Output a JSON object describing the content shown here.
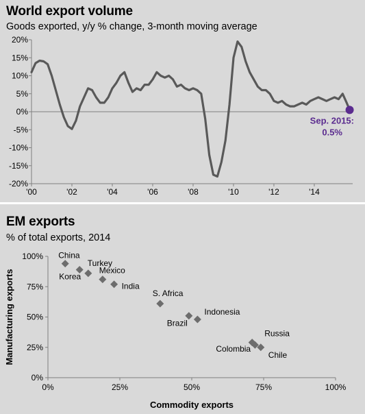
{
  "chart_data": [
    {
      "type": "line",
      "title": "World export volume",
      "subtitle": "Goods exported, y/y % change, 3-month moving average",
      "xlim": [
        2000,
        2015.9
      ],
      "ylim": [
        -20,
        20
      ],
      "x_ticks": [
        "'00",
        "'02",
        "'04",
        "'06",
        "'08",
        "'10",
        "'12",
        "'14"
      ],
      "y_ticks": [
        "20%",
        "15%",
        "10%",
        "5%",
        "0%",
        "-5%",
        "-10%",
        "-15%",
        "-20%"
      ],
      "line_color": "#595959",
      "point_color": "#5b2c8f",
      "annotation": {
        "line1": "Sep. 2015:",
        "line2": "0.5%",
        "x": 2015.75,
        "y": 0.5
      },
      "series": [
        {
          "x": [
            2000.0,
            2000.2,
            2000.4,
            2000.6,
            2000.8,
            2001.0,
            2001.2,
            2001.4,
            2001.6,
            2001.8,
            2002.0,
            2002.2,
            2002.4,
            2002.6,
            2002.8,
            2003.0,
            2003.2,
            2003.4,
            2003.6,
            2003.8,
            2004.0,
            2004.2,
            2004.4,
            2004.6,
            2004.8,
            2005.0,
            2005.2,
            2005.4,
            2005.6,
            2005.8,
            2006.0,
            2006.2,
            2006.4,
            2006.6,
            2006.8,
            2007.0,
            2007.2,
            2007.4,
            2007.6,
            2007.8,
            2008.0,
            2008.2,
            2008.4,
            2008.6,
            2008.8,
            2009.0,
            2009.2,
            2009.4,
            2009.6,
            2009.8,
            2010.0,
            2010.2,
            2010.4,
            2010.6,
            2010.8,
            2011.0,
            2011.2,
            2011.4,
            2011.6,
            2011.8,
            2012.0,
            2012.2,
            2012.4,
            2012.6,
            2012.8,
            2013.0,
            2013.2,
            2013.4,
            2013.6,
            2013.8,
            2014.0,
            2014.2,
            2014.4,
            2014.6,
            2014.8,
            2015.0,
            2015.2,
            2015.4,
            2015.6,
            2015.75
          ],
          "y": [
            11.0,
            13.5,
            14.2,
            14.0,
            13.2,
            10.0,
            6.0,
            2.0,
            -1.5,
            -4.0,
            -4.8,
            -2.5,
            1.5,
            4.0,
            6.5,
            6.0,
            4.0,
            2.5,
            2.5,
            4.0,
            6.5,
            8.0,
            10.0,
            11.0,
            8.0,
            5.5,
            6.5,
            6.0,
            7.5,
            7.5,
            9.0,
            11.0,
            10.0,
            9.5,
            10.0,
            9.0,
            7.0,
            7.5,
            6.5,
            6.0,
            6.5,
            6.0,
            5.0,
            -2.0,
            -12.0,
            -17.5,
            -18.0,
            -14.0,
            -8.0,
            2.0,
            15.0,
            19.5,
            18.0,
            14.0,
            11.0,
            9.0,
            7.0,
            6.0,
            6.0,
            5.0,
            3.0,
            2.5,
            3.0,
            2.0,
            1.5,
            1.5,
            2.0,
            2.5,
            2.0,
            3.0,
            3.5,
            4.0,
            3.5,
            3.0,
            3.5,
            4.0,
            3.5,
            5.0,
            2.5,
            0.5
          ]
        }
      ]
    },
    {
      "type": "scatter",
      "title": "EM exports",
      "subtitle": "% of total exports, 2014",
      "xlabel": "Commodity exports",
      "ylabel": "Manufacturing exports",
      "xlim": [
        0,
        100
      ],
      "ylim": [
        0,
        100
      ],
      "x_ticks": [
        "0%",
        "25%",
        "50%",
        "75%",
        "100%"
      ],
      "y_ticks": [
        "100%",
        "75%",
        "50%",
        "25%",
        "0%"
      ],
      "marker_color": "#6d6d6d",
      "points": [
        {
          "label": "China",
          "x": 6,
          "y": 94
        },
        {
          "label": "Korea",
          "x": 11,
          "y": 89
        },
        {
          "label": "Turkey",
          "x": 14,
          "y": 86
        },
        {
          "label": "Mexico",
          "x": 19,
          "y": 81
        },
        {
          "label": "India",
          "x": 23,
          "y": 77
        },
        {
          "label": "S. Africa",
          "x": 39,
          "y": 61
        },
        {
          "label": "Brazil",
          "x": 49,
          "y": 51
        },
        {
          "label": "Indonesia",
          "x": 52,
          "y": 48
        },
        {
          "label": "Russia",
          "x": 71,
          "y": 29
        },
        {
          "label": "Colombia",
          "x": 72,
          "y": 27
        },
        {
          "label": "Chile",
          "x": 74,
          "y": 25
        }
      ]
    }
  ]
}
